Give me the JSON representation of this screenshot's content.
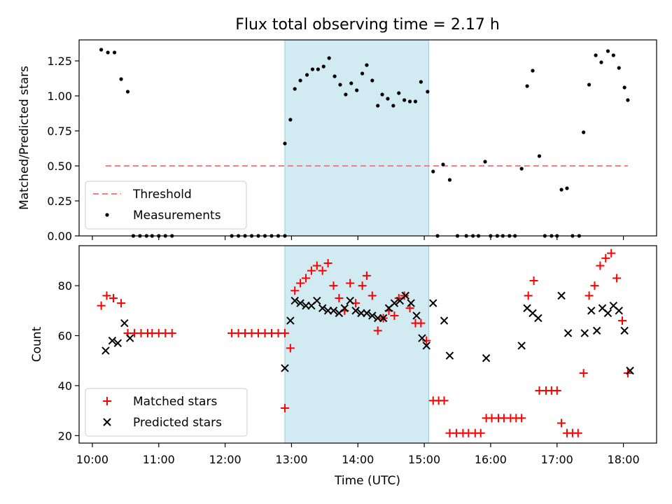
{
  "chart_data": [
    {
      "type": "scatter",
      "title": "Flux total observing time = 2.17 h",
      "xlabel": "",
      "ylabel": "Matched/Predicted stars",
      "xlim": [
        "09:48",
        "18:30"
      ],
      "ylim": [
        0,
        1.4
      ],
      "yticks": [
        0.0,
        0.25,
        0.5,
        0.75,
        1.0,
        1.25
      ],
      "yticklabels": [
        "0.00",
        "0.25",
        "0.50",
        "0.75",
        "1.00",
        "1.25"
      ],
      "shaded_span": {
        "start": "12:54",
        "end": "15:04",
        "color": "#add8e6"
      },
      "legend": {
        "position": "lower left",
        "entries": [
          "Threshold",
          "Measurements"
        ]
      },
      "series": [
        {
          "name": "Threshold",
          "style": "dashed-line",
          "color": "#f08080",
          "x": [
            "10:12",
            "18:04"
          ],
          "y": [
            0.5,
            0.5
          ]
        },
        {
          "name": "Measurements",
          "style": "dot",
          "color": "#000000",
          "points": [
            [
              "10:08",
              1.33
            ],
            [
              "10:14",
              1.31
            ],
            [
              "10:20",
              1.31
            ],
            [
              "10:26",
              1.12
            ],
            [
              "10:32",
              1.03
            ],
            [
              "10:37",
              0
            ],
            [
              "10:43",
              0
            ],
            [
              "10:49",
              0
            ],
            [
              "10:54",
              0
            ],
            [
              "11:00",
              0
            ],
            [
              "11:06",
              0
            ],
            [
              "11:12",
              0
            ],
            [
              "12:06",
              0
            ],
            [
              "12:12",
              0
            ],
            [
              "12:18",
              0
            ],
            [
              "12:24",
              0
            ],
            [
              "12:30",
              0
            ],
            [
              "12:36",
              0
            ],
            [
              "12:42",
              0
            ],
            [
              "12:48",
              0
            ],
            [
              "12:54",
              0
            ],
            [
              "12:54",
              0.66
            ],
            [
              "12:59",
              0.83
            ],
            [
              "13:03",
              1.05
            ],
            [
              "13:08",
              1.11
            ],
            [
              "13:14",
              1.15
            ],
            [
              "13:19",
              1.19
            ],
            [
              "13:24",
              1.19
            ],
            [
              "13:29",
              1.21
            ],
            [
              "13:34",
              1.27
            ],
            [
              "13:39",
              1.14
            ],
            [
              "13:44",
              1.08
            ],
            [
              "13:49",
              1.01
            ],
            [
              "13:54",
              1.09
            ],
            [
              "13:59",
              1.04
            ],
            [
              "14:04",
              1.16
            ],
            [
              "14:08",
              1.22
            ],
            [
              "14:13",
              1.11
            ],
            [
              "14:18",
              0.93
            ],
            [
              "14:22",
              1.01
            ],
            [
              "14:27",
              0.98
            ],
            [
              "14:32",
              0.93
            ],
            [
              "14:37",
              1.02
            ],
            [
              "14:42",
              0.97
            ],
            [
              "14:47",
              0.96
            ],
            [
              "14:52",
              0.96
            ],
            [
              "14:57",
              1.1
            ],
            [
              "15:03",
              1.03
            ],
            [
              "15:08",
              0.46
            ],
            [
              "15:12",
              0
            ],
            [
              "15:17",
              0.51
            ],
            [
              "15:23",
              0.4
            ],
            [
              "15:30",
              0
            ],
            [
              "15:38",
              0
            ],
            [
              "15:44",
              0
            ],
            [
              "15:49",
              0
            ],
            [
              "15:55",
              0.53
            ],
            [
              "16:00",
              0
            ],
            [
              "16:06",
              0
            ],
            [
              "16:11",
              0
            ],
            [
              "16:17",
              0
            ],
            [
              "16:22",
              0
            ],
            [
              "16:28",
              0.48
            ],
            [
              "16:33",
              1.07
            ],
            [
              "16:38",
              1.18
            ],
            [
              "16:44",
              0.57
            ],
            [
              "16:49",
              0
            ],
            [
              "16:55",
              0
            ],
            [
              "17:00",
              0
            ],
            [
              "17:04",
              0.33
            ],
            [
              "17:09",
              0.34
            ],
            [
              "17:14",
              0
            ],
            [
              "17:20",
              0
            ],
            [
              "17:24",
              0.74
            ],
            [
              "17:29",
              1.08
            ],
            [
              "17:35",
              1.29
            ],
            [
              "17:40",
              1.24
            ],
            [
              "17:46",
              1.32
            ],
            [
              "17:51",
              1.29
            ],
            [
              "17:56",
              1.2
            ],
            [
              "18:01",
              1.06
            ],
            [
              "18:04",
              0.97
            ]
          ]
        }
      ]
    },
    {
      "type": "scatter",
      "title": "",
      "xlabel": "Time (UTC)",
      "ylabel": "Count",
      "xlim": [
        "09:48",
        "18:30"
      ],
      "ylim": [
        17,
        96
      ],
      "yticks": [
        20,
        40,
        60,
        80
      ],
      "yticklabels": [
        "20",
        "40",
        "60",
        "80"
      ],
      "xticks": [
        "10:00",
        "11:00",
        "12:00",
        "13:00",
        "14:00",
        "15:00",
        "16:00",
        "17:00",
        "18:00"
      ],
      "shaded_span": {
        "start": "12:54",
        "end": "15:04",
        "color": "#add8e6"
      },
      "legend": {
        "position": "lower left",
        "entries": [
          "Matched stars",
          "Predicted stars"
        ]
      },
      "series": [
        {
          "name": "Matched stars",
          "marker": "plus",
          "color": "#ff0000",
          "points": [
            [
              "10:08",
              72
            ],
            [
              "10:13",
              76
            ],
            [
              "10:19",
              75
            ],
            [
              "10:26",
              73
            ],
            [
              "10:32",
              61
            ],
            [
              "10:38",
              61
            ],
            [
              "10:44",
              61
            ],
            [
              "10:50",
              61
            ],
            [
              "10:54",
              61
            ],
            [
              "11:00",
              61
            ],
            [
              "11:06",
              61
            ],
            [
              "11:12",
              61
            ],
            [
              "12:06",
              61
            ],
            [
              "12:12",
              61
            ],
            [
              "12:18",
              61
            ],
            [
              "12:24",
              61
            ],
            [
              "12:30",
              61
            ],
            [
              "12:36",
              61
            ],
            [
              "12:42",
              61
            ],
            [
              "12:48",
              61
            ],
            [
              "12:54",
              61
            ],
            [
              "12:54",
              31
            ],
            [
              "12:59",
              55
            ],
            [
              "13:03",
              78
            ],
            [
              "13:08",
              81
            ],
            [
              "13:13",
              83
            ],
            [
              "13:18",
              86
            ],
            [
              "13:23",
              88
            ],
            [
              "13:28",
              86
            ],
            [
              "13:33",
              89
            ],
            [
              "13:38",
              80
            ],
            [
              "13:43",
              75
            ],
            [
              "13:48",
              70
            ],
            [
              "13:53",
              81
            ],
            [
              "13:58",
              73
            ],
            [
              "14:04",
              80
            ],
            [
              "14:08",
              84
            ],
            [
              "14:13",
              76
            ],
            [
              "14:18",
              62
            ],
            [
              "14:23",
              67
            ],
            [
              "14:28",
              70
            ],
            [
              "14:33",
              68
            ],
            [
              "14:37",
              75
            ],
            [
              "14:42",
              76
            ],
            [
              "14:47",
              71
            ],
            [
              "14:52",
              65
            ],
            [
              "14:57",
              65
            ],
            [
              "15:02",
              58
            ],
            [
              "15:08",
              34
            ],
            [
              "15:13",
              34
            ],
            [
              "15:18",
              34
            ],
            [
              "15:23",
              21
            ],
            [
              "15:29",
              21
            ],
            [
              "15:35",
              21
            ],
            [
              "15:40",
              21
            ],
            [
              "15:46",
              21
            ],
            [
              "15:51",
              21
            ],
            [
              "15:56",
              27
            ],
            [
              "16:01",
              27
            ],
            [
              "16:07",
              27
            ],
            [
              "16:12",
              27
            ],
            [
              "16:18",
              27
            ],
            [
              "16:23",
              27
            ],
            [
              "16:28",
              27
            ],
            [
              "16:34",
              76
            ],
            [
              "16:39",
              82
            ],
            [
              "16:44",
              38
            ],
            [
              "16:50",
              38
            ],
            [
              "16:55",
              38
            ],
            [
              "17:00",
              38
            ],
            [
              "17:04",
              25
            ],
            [
              "17:09",
              21
            ],
            [
              "17:14",
              21
            ],
            [
              "17:19",
              21
            ],
            [
              "17:24",
              45
            ],
            [
              "17:29",
              76
            ],
            [
              "17:34",
              80
            ],
            [
              "17:39",
              88
            ],
            [
              "17:44",
              91
            ],
            [
              "17:49",
              93
            ],
            [
              "17:54",
              83
            ],
            [
              "17:59",
              66
            ],
            [
              "18:04",
              45
            ]
          ]
        },
        {
          "name": "Predicted stars",
          "marker": "x",
          "color": "#000000",
          "points": [
            [
              "10:12",
              54
            ],
            [
              "10:18",
              58
            ],
            [
              "10:23",
              57
            ],
            [
              "10:29",
              65
            ],
            [
              "10:34",
              59
            ],
            [
              "12:54",
              47
            ],
            [
              "12:59",
              66
            ],
            [
              "13:03",
              74
            ],
            [
              "13:08",
              73
            ],
            [
              "13:13",
              72
            ],
            [
              "13:18",
              72
            ],
            [
              "13:23",
              74
            ],
            [
              "13:28",
              71
            ],
            [
              "13:33",
              70
            ],
            [
              "13:38",
              70
            ],
            [
              "13:43",
              69
            ],
            [
              "13:48",
              71
            ],
            [
              "13:53",
              74
            ],
            [
              "13:58",
              70
            ],
            [
              "14:03",
              69
            ],
            [
              "14:08",
              69
            ],
            [
              "14:13",
              68
            ],
            [
              "14:18",
              67
            ],
            [
              "14:23",
              67
            ],
            [
              "14:28",
              71
            ],
            [
              "14:33",
              73
            ],
            [
              "14:38",
              74
            ],
            [
              "14:43",
              76
            ],
            [
              "14:48",
              73
            ],
            [
              "14:53",
              68
            ],
            [
              "14:58",
              59
            ],
            [
              "15:02",
              56
            ],
            [
              "15:08",
              73
            ],
            [
              "15:18",
              66
            ],
            [
              "15:23",
              52
            ],
            [
              "15:56",
              51
            ],
            [
              "16:28",
              56
            ],
            [
              "16:33",
              71
            ],
            [
              "16:38",
              69
            ],
            [
              "16:43",
              67
            ],
            [
              "17:04",
              76
            ],
            [
              "17:10",
              61
            ],
            [
              "17:25",
              61
            ],
            [
              "17:31",
              70
            ],
            [
              "17:36",
              62
            ],
            [
              "17:41",
              71
            ],
            [
              "17:46",
              69
            ],
            [
              "17:51",
              72
            ],
            [
              "17:56",
              70
            ],
            [
              "18:01",
              62
            ],
            [
              "18:06",
              46
            ]
          ]
        }
      ]
    }
  ]
}
